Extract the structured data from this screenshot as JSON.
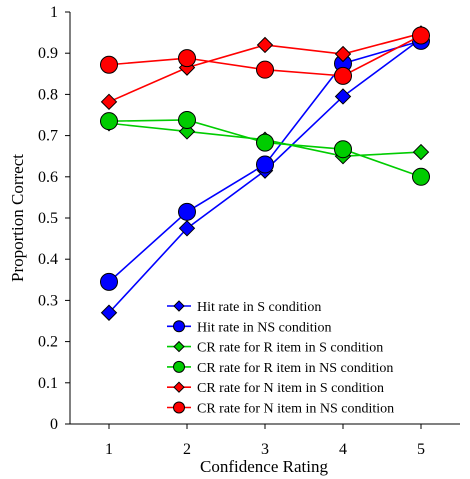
{
  "chart_data": {
    "type": "line",
    "xlabel": "Confidence Rating",
    "ylabel": "Proportion Correct",
    "x": [
      1,
      2,
      3,
      4,
      5
    ],
    "xlim": [
      0.5,
      5.5
    ],
    "ylim": [
      0,
      1
    ],
    "yticks": [
      "0",
      "0.1",
      "0.2",
      "0.3",
      "0.4",
      "0.5",
      "0.6",
      "0.7",
      "0.8",
      "0.9",
      "1"
    ],
    "xticks": [
      "1",
      "2",
      "3",
      "4",
      "5"
    ],
    "grid": false,
    "legend_position": "bottom-right",
    "series": [
      {
        "name": "Hit rate in S condition",
        "marker": "diamond",
        "color": "#0000ff",
        "values": [
          0.27,
          0.475,
          0.615,
          0.795,
          0.935
        ]
      },
      {
        "name": "Hit rate in NS condition",
        "marker": "circle",
        "color": "#0000ff",
        "values": [
          0.345,
          0.515,
          0.63,
          0.875,
          0.93
        ]
      },
      {
        "name": "CR rate for R item in S condition",
        "marker": "diamond",
        "color": "#00cc00",
        "values": [
          0.73,
          0.71,
          0.69,
          0.65,
          0.66
        ]
      },
      {
        "name": "CR rate for R item in NS condition",
        "marker": "circle",
        "color": "#00cc00",
        "values": [
          0.735,
          0.738,
          0.683,
          0.667,
          0.6
        ]
      },
      {
        "name": "CR rate for N item in S condition",
        "marker": "diamond",
        "color": "#ff0000",
        "values": [
          0.782,
          0.865,
          0.92,
          0.898,
          0.948
        ]
      },
      {
        "name": "CR rate for N item in NS condition",
        "marker": "circle",
        "color": "#ff0000",
        "values": [
          0.872,
          0.888,
          0.86,
          0.845,
          0.943
        ]
      }
    ]
  }
}
